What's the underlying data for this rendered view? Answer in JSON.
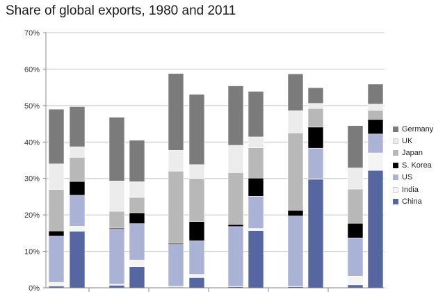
{
  "chart_data": {
    "type": "bar",
    "stacked": true,
    "title": "Share of global exports, 1980 and 2011",
    "xlabel": "",
    "ylabel": "",
    "ylim": [
      0,
      70
    ],
    "y_ticks": [
      "0%",
      "10%",
      "20%",
      "30%",
      "40%",
      "50%",
      "60%",
      "70%"
    ],
    "y_tick_values": [
      0,
      10,
      20,
      30,
      40,
      50,
      60,
      70
    ],
    "grid": true,
    "legend_position": "right",
    "categories": [
      "",
      "",
      "",
      "",
      "",
      "",
      "",
      "",
      "",
      "",
      "",
      ""
    ],
    "series": [
      {
        "name": "China",
        "color": "#5566a1",
        "values": [
          0.5,
          15.5,
          0.7,
          5.8,
          0.2,
          2.8,
          0.3,
          15.7,
          0.3,
          29.8,
          0.8,
          32.2
        ]
      },
      {
        "name": "India",
        "color": "#f4f4f4",
        "values": [
          1.0,
          1.4,
          0.3,
          1.8,
          0.2,
          0.9,
          0.1,
          0.6,
          0.1,
          0.1,
          2.4,
          4.8
        ]
      },
      {
        "name": "US",
        "color": "#aab2d6",
        "values": [
          12.7,
          8.5,
          15.1,
          10.0,
          11.5,
          9.2,
          16.4,
          8.8,
          19.3,
          8.4,
          10.5,
          5.2
        ]
      },
      {
        "name": "S. Korea",
        "color": "#000000",
        "values": [
          1.4,
          3.8,
          0.3,
          3.0,
          0.3,
          5.3,
          0.6,
          5.0,
          1.6,
          5.8,
          4.0,
          4.0
        ]
      },
      {
        "name": "Japan",
        "color": "#b8b8b8",
        "values": [
          11.4,
          6.6,
          4.6,
          4.2,
          19.8,
          11.8,
          14.2,
          8.3,
          21.2,
          5.1,
          9.4,
          2.5
        ]
      },
      {
        "name": "UK",
        "color": "#ececec",
        "values": [
          7.0,
          2.9,
          8.3,
          4.3,
          5.7,
          3.8,
          7.5,
          3.0,
          6.1,
          1.4,
          5.8,
          1.7
        ]
      },
      {
        "name": "Germany",
        "color": "#7b7b7b",
        "values": [
          15.0,
          11.0,
          17.5,
          11.4,
          21.1,
          19.3,
          16.3,
          12.5,
          10.1,
          4.3,
          11.6,
          5.5
        ]
      }
    ],
    "legend_order": [
      "Germany",
      "UK",
      "Japan",
      "S. Korea",
      "US",
      "India",
      "China"
    ]
  }
}
